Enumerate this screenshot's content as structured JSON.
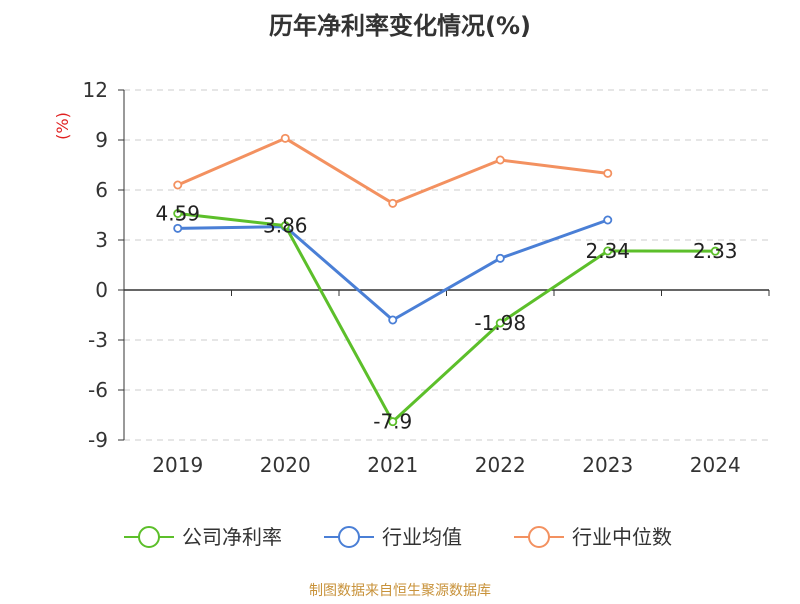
{
  "chart_data": {
    "type": "line",
    "title": "历年净利率变化情况(%)",
    "ylabel": "(%)",
    "ylabel_color": "#e02020",
    "categories": [
      "2019",
      "2020",
      "2021",
      "2022",
      "2023",
      "2024"
    ],
    "ylim": [
      -9,
      12
    ],
    "yticks": [
      12,
      9,
      6,
      3,
      0,
      -3,
      -6,
      -9
    ],
    "ytick_labels": [
      "12",
      "9",
      "6",
      "3",
      "0",
      "-3",
      "-6",
      "-9"
    ],
    "grid": true,
    "legend_position": "bottom",
    "series": [
      {
        "name": "公司净利率",
        "color": "#5cbf2a",
        "values": [
          4.59,
          3.86,
          -7.9,
          -1.98,
          2.34,
          2.33
        ],
        "labels": [
          "4.59",
          "3.86",
          "-7.9",
          "-1.98",
          "2.34",
          "2.33"
        ]
      },
      {
        "name": "行业均值",
        "color": "#4a7fd6",
        "values": [
          3.7,
          3.8,
          -1.8,
          1.9,
          4.2,
          null
        ]
      },
      {
        "name": "行业中位数",
        "color": "#f39160",
        "values": [
          6.3,
          9.1,
          5.2,
          7.8,
          7.0,
          null
        ]
      }
    ]
  },
  "source": {
    "text": "制图数据来自恒生聚源数据库",
    "color": "#c8923a"
  }
}
